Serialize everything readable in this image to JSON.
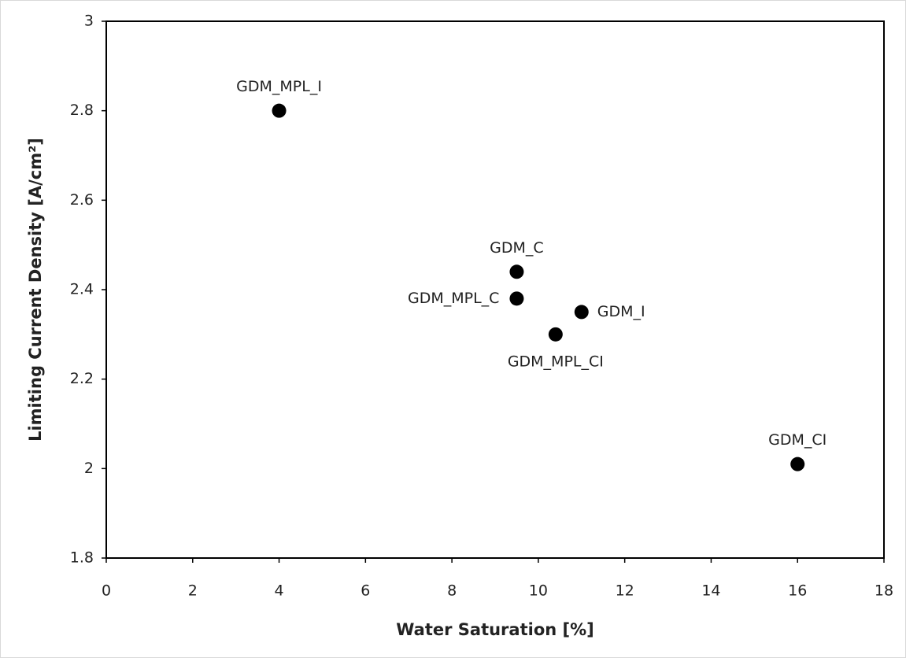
{
  "chart_data": {
    "type": "scatter",
    "x_label": "Water Saturation [%]",
    "y_label": "Limiting Current Density [A/cm²]",
    "x": [
      4,
      9.5,
      9.5,
      11,
      10.4,
      16
    ],
    "y": [
      2.8,
      2.44,
      2.38,
      2.35,
      2.3,
      2.01
    ],
    "labels": [
      "GDM_MPL_I",
      "GDM_C",
      "GDM_MPL_C",
      "GDM_I",
      "GDM_MPL_CI",
      "GDM_CI"
    ],
    "color": "#000000",
    "xlim": [
      0,
      18
    ],
    "xticks": [
      0,
      2,
      4,
      6,
      8,
      10,
      12,
      14,
      16,
      18
    ],
    "ylim": [
      1.8,
      3
    ],
    "yticks": [
      1.8,
      2,
      2.2,
      2.4,
      2.6,
      2.8,
      3
    ],
    "grid": false
  }
}
